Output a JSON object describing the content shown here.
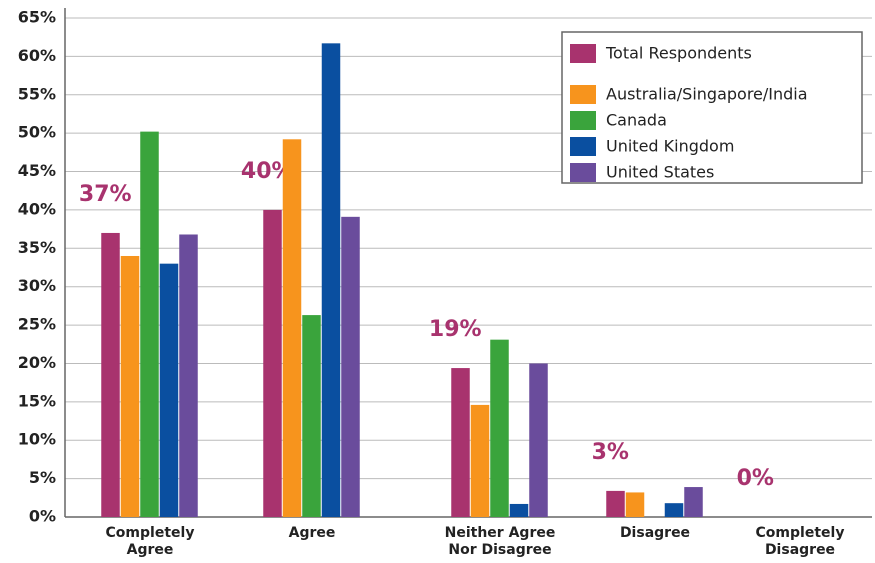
{
  "chart_data": {
    "type": "bar",
    "categories": [
      "Completely Agree",
      "Agree",
      "Neither Agree Nor Disagree",
      "Disagree",
      "Completely Disagree"
    ],
    "series": [
      {
        "name": "Total Respondents",
        "color": "#a8336e",
        "values": [
          37,
          40,
          19.4,
          3.4,
          0
        ],
        "value_labels": [
          "37%",
          "40%",
          "19%",
          "3%",
          "0%"
        ]
      },
      {
        "name": "Australia/Singapore/India",
        "color": "#f7941d",
        "values": [
          34,
          49.2,
          14.6,
          3.2,
          0
        ]
      },
      {
        "name": "Canada",
        "color": "#3aa43c",
        "values": [
          50.2,
          26.3,
          23.1,
          0,
          0
        ]
      },
      {
        "name": "United Kingdom",
        "color": "#0a4fa0",
        "values": [
          33,
          61.7,
          1.7,
          1.8,
          0
        ]
      },
      {
        "name": "United States",
        "color": "#6a4c9c",
        "values": [
          36.8,
          39.1,
          20,
          3.9,
          0
        ]
      }
    ],
    "ylim": [
      0,
      65
    ],
    "yticks": [
      {
        "value": 0,
        "label": "0%"
      },
      {
        "value": 5,
        "label": "5%"
      },
      {
        "value": 10,
        "label": "10%"
      },
      {
        "value": 15,
        "label": "15%"
      },
      {
        "value": 20,
        "label": "20%"
      },
      {
        "value": 25,
        "label": "25%"
      },
      {
        "value": 30,
        "label": "30%"
      },
      {
        "value": 35,
        "label": "35%"
      },
      {
        "value": 40,
        "label": "40%"
      },
      {
        "value": 45,
        "label": "45%"
      },
      {
        "value": 50,
        "label": "50%"
      },
      {
        "value": 55,
        "label": "55%"
      },
      {
        "value": 60,
        "label": "60%"
      },
      {
        "value": 65,
        "label": "65%"
      }
    ],
    "grid": true,
    "legend": "upper right"
  }
}
